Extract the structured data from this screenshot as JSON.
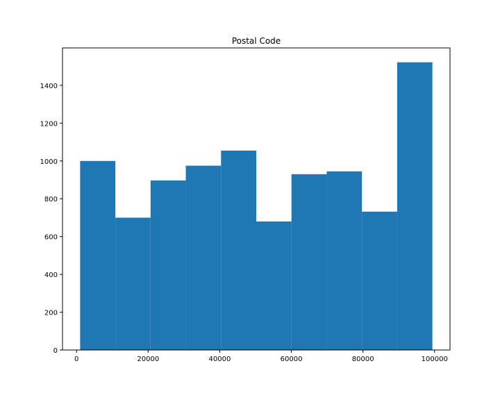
{
  "chart_data": {
    "type": "bar",
    "title": "Postal Code",
    "xlabel": "",
    "ylabel": "",
    "bin_edges": [
      1001,
      10840,
      20679,
      30518,
      40357,
      50196,
      60035,
      69874,
      79713,
      89552,
      99391
    ],
    "values": [
      1000,
      700,
      897,
      975,
      1055,
      680,
      930,
      945,
      732,
      1522
    ],
    "xlim": [
      -3919,
      104311
    ],
    "ylim": [
      0,
      1598
    ],
    "x_ticks": [
      0,
      20000,
      40000,
      60000,
      80000,
      100000
    ],
    "x_tick_labels": [
      "0",
      "20000",
      "40000",
      "60000",
      "80000",
      "100000"
    ],
    "y_ticks": [
      0,
      200,
      400,
      600,
      800,
      1000,
      1200,
      1400
    ],
    "y_tick_labels": [
      "0",
      "200",
      "400",
      "600",
      "800",
      "1000",
      "1200",
      "1400"
    ],
    "grid": false,
    "bar_color": "#1f77b4"
  }
}
